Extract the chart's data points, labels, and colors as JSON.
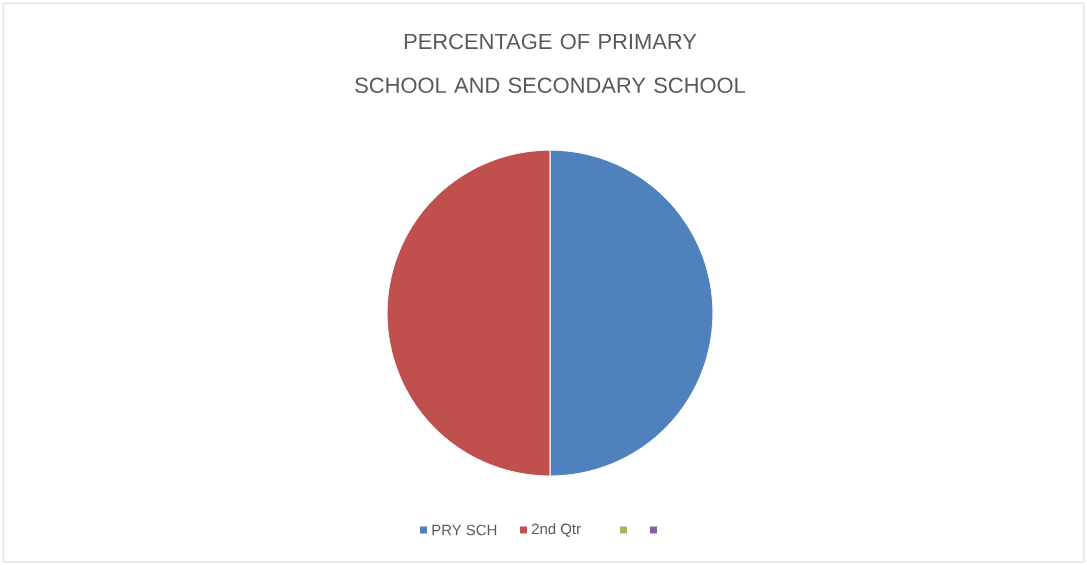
{
  "chart_data": {
    "type": "pie",
    "title": "PERCENTAGE OF PRIMARY SCHOOL AND SECONDARY SCHOOL",
    "categories": [
      "PRY SCH",
      "2nd Qtr",
      null,
      null
    ],
    "values": [
      50,
      50,
      0,
      0
    ],
    "colors": [
      "#4f81bd",
      "#c0504d",
      "#9bbb59",
      "#8064a2"
    ],
    "legend": "bottom"
  }
}
